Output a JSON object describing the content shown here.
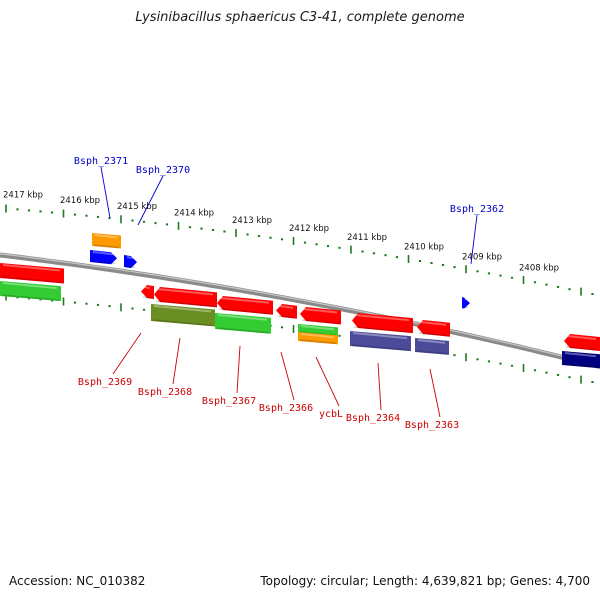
{
  "title": "Lysinibacillus sphaericus C3-41, complete genome",
  "footer": {
    "accession": "Accession: NC_010382",
    "summary": "Topology: circular; Length: 4,639,821 bp; Genes: 4,700"
  },
  "colors": {
    "backbone": "#8a8a8a",
    "tick": "#1f7a1f",
    "label_top": "#0000cc",
    "label_bottom": "#cc0000"
  },
  "scale_labels": [
    "2417 kbp",
    "2416 kbp",
    "2415 kbp",
    "2414 kbp",
    "2413 kbp",
    "2412 kbp",
    "2411 kbp",
    "2410 kbp",
    "2409 kbp",
    "2408 kbp"
  ],
  "gene_labels_top": [
    "Bsph_2371",
    "Bsph_2370",
    "Bsph_2362"
  ],
  "gene_labels_bottom": [
    "Bsph_2369",
    "Bsph_2368",
    "Bsph_2367",
    "Bsph_2366",
    "ycbL",
    "Bsph_2364",
    "Bsph_2363"
  ],
  "feature_colors": {
    "cds": "#ff0000",
    "gene_green": "#33cc33",
    "gene_olive": "#6b8e23",
    "gene_orange": "#ff9900",
    "gene_slate": "#4b4b9a",
    "gene_blue": "#0000ff",
    "gene_navy": "#000080"
  }
}
